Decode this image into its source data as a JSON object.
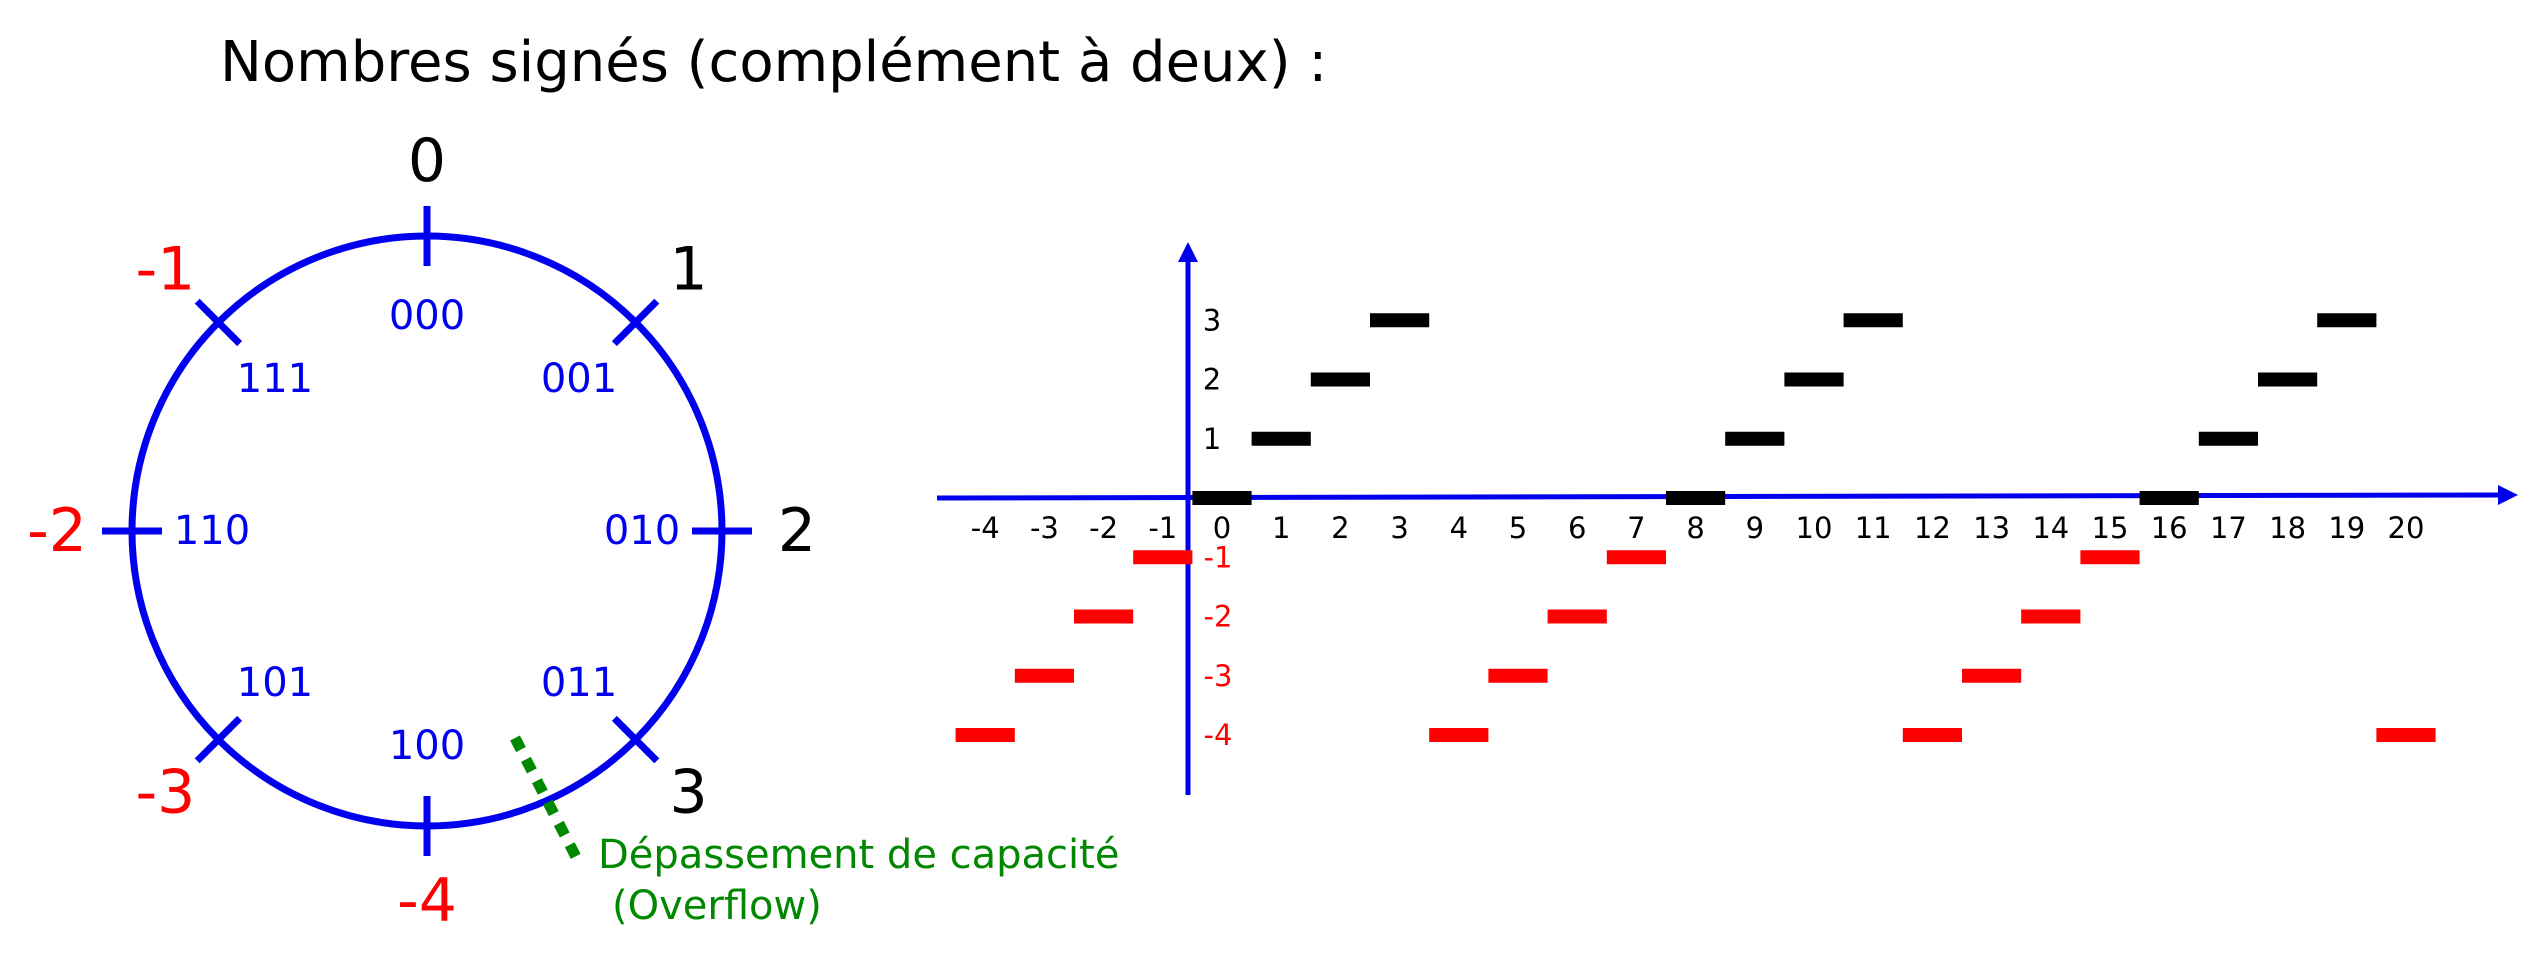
{
  "title": "Nombres signés (complément à deux) :",
  "colors": {
    "blue": "#0000ee",
    "red": "#ff0000",
    "black": "#000000",
    "green": "#008800"
  },
  "circle": {
    "positions": [
      {
        "code": "000",
        "value": "0",
        "value_color": "#000000"
      },
      {
        "code": "001",
        "value": "1",
        "value_color": "#000000"
      },
      {
        "code": "010",
        "value": "2",
        "value_color": "#000000"
      },
      {
        "code": "011",
        "value": "3",
        "value_color": "#000000"
      },
      {
        "code": "100",
        "value": "-4",
        "value_color": "#ff0000"
      },
      {
        "code": "101",
        "value": "-3",
        "value_color": "#ff0000"
      },
      {
        "code": "110",
        "value": "-2",
        "value_color": "#ff0000"
      },
      {
        "code": "111",
        "value": "-1",
        "value_color": "#ff0000"
      }
    ],
    "overflow_label_line1": "Dépassement de capacité",
    "overflow_label_line2": "(Overflow)"
  },
  "chart_data": {
    "type": "scatter",
    "title": "",
    "x_ticks": [
      "-4",
      "-3",
      "-2",
      "-1",
      "0",
      "1",
      "2",
      "3",
      "4",
      "5",
      "6",
      "7",
      "8",
      "9",
      "10",
      "11",
      "12",
      "13",
      "14",
      "15",
      "16",
      "17",
      "18",
      "19",
      "20"
    ],
    "y_ticks_positive": [
      "1",
      "2",
      "3"
    ],
    "y_ticks_negative": [
      "-1",
      "-2",
      "-3",
      "-4"
    ],
    "xlim": [
      -4,
      21
    ],
    "ylim": [
      -4,
      3
    ],
    "points": [
      {
        "x": -4,
        "y": -4
      },
      {
        "x": -3,
        "y": -3
      },
      {
        "x": -2,
        "y": -2
      },
      {
        "x": -1,
        "y": -1
      },
      {
        "x": 0,
        "y": 0
      },
      {
        "x": 1,
        "y": 1
      },
      {
        "x": 2,
        "y": 2
      },
      {
        "x": 3,
        "y": 3
      },
      {
        "x": 4,
        "y": -4
      },
      {
        "x": 5,
        "y": -3
      },
      {
        "x": 6,
        "y": -2
      },
      {
        "x": 7,
        "y": -1
      },
      {
        "x": 8,
        "y": 0
      },
      {
        "x": 9,
        "y": 1
      },
      {
        "x": 10,
        "y": 2
      },
      {
        "x": 11,
        "y": 3
      },
      {
        "x": 12,
        "y": -4
      },
      {
        "x": 13,
        "y": -3
      },
      {
        "x": 14,
        "y": -2
      },
      {
        "x": 15,
        "y": -1
      },
      {
        "x": 16,
        "y": 0
      },
      {
        "x": 17,
        "y": 1
      },
      {
        "x": 18,
        "y": 2
      },
      {
        "x": 19,
        "y": 3
      },
      {
        "x": 20,
        "y": -4
      }
    ]
  }
}
